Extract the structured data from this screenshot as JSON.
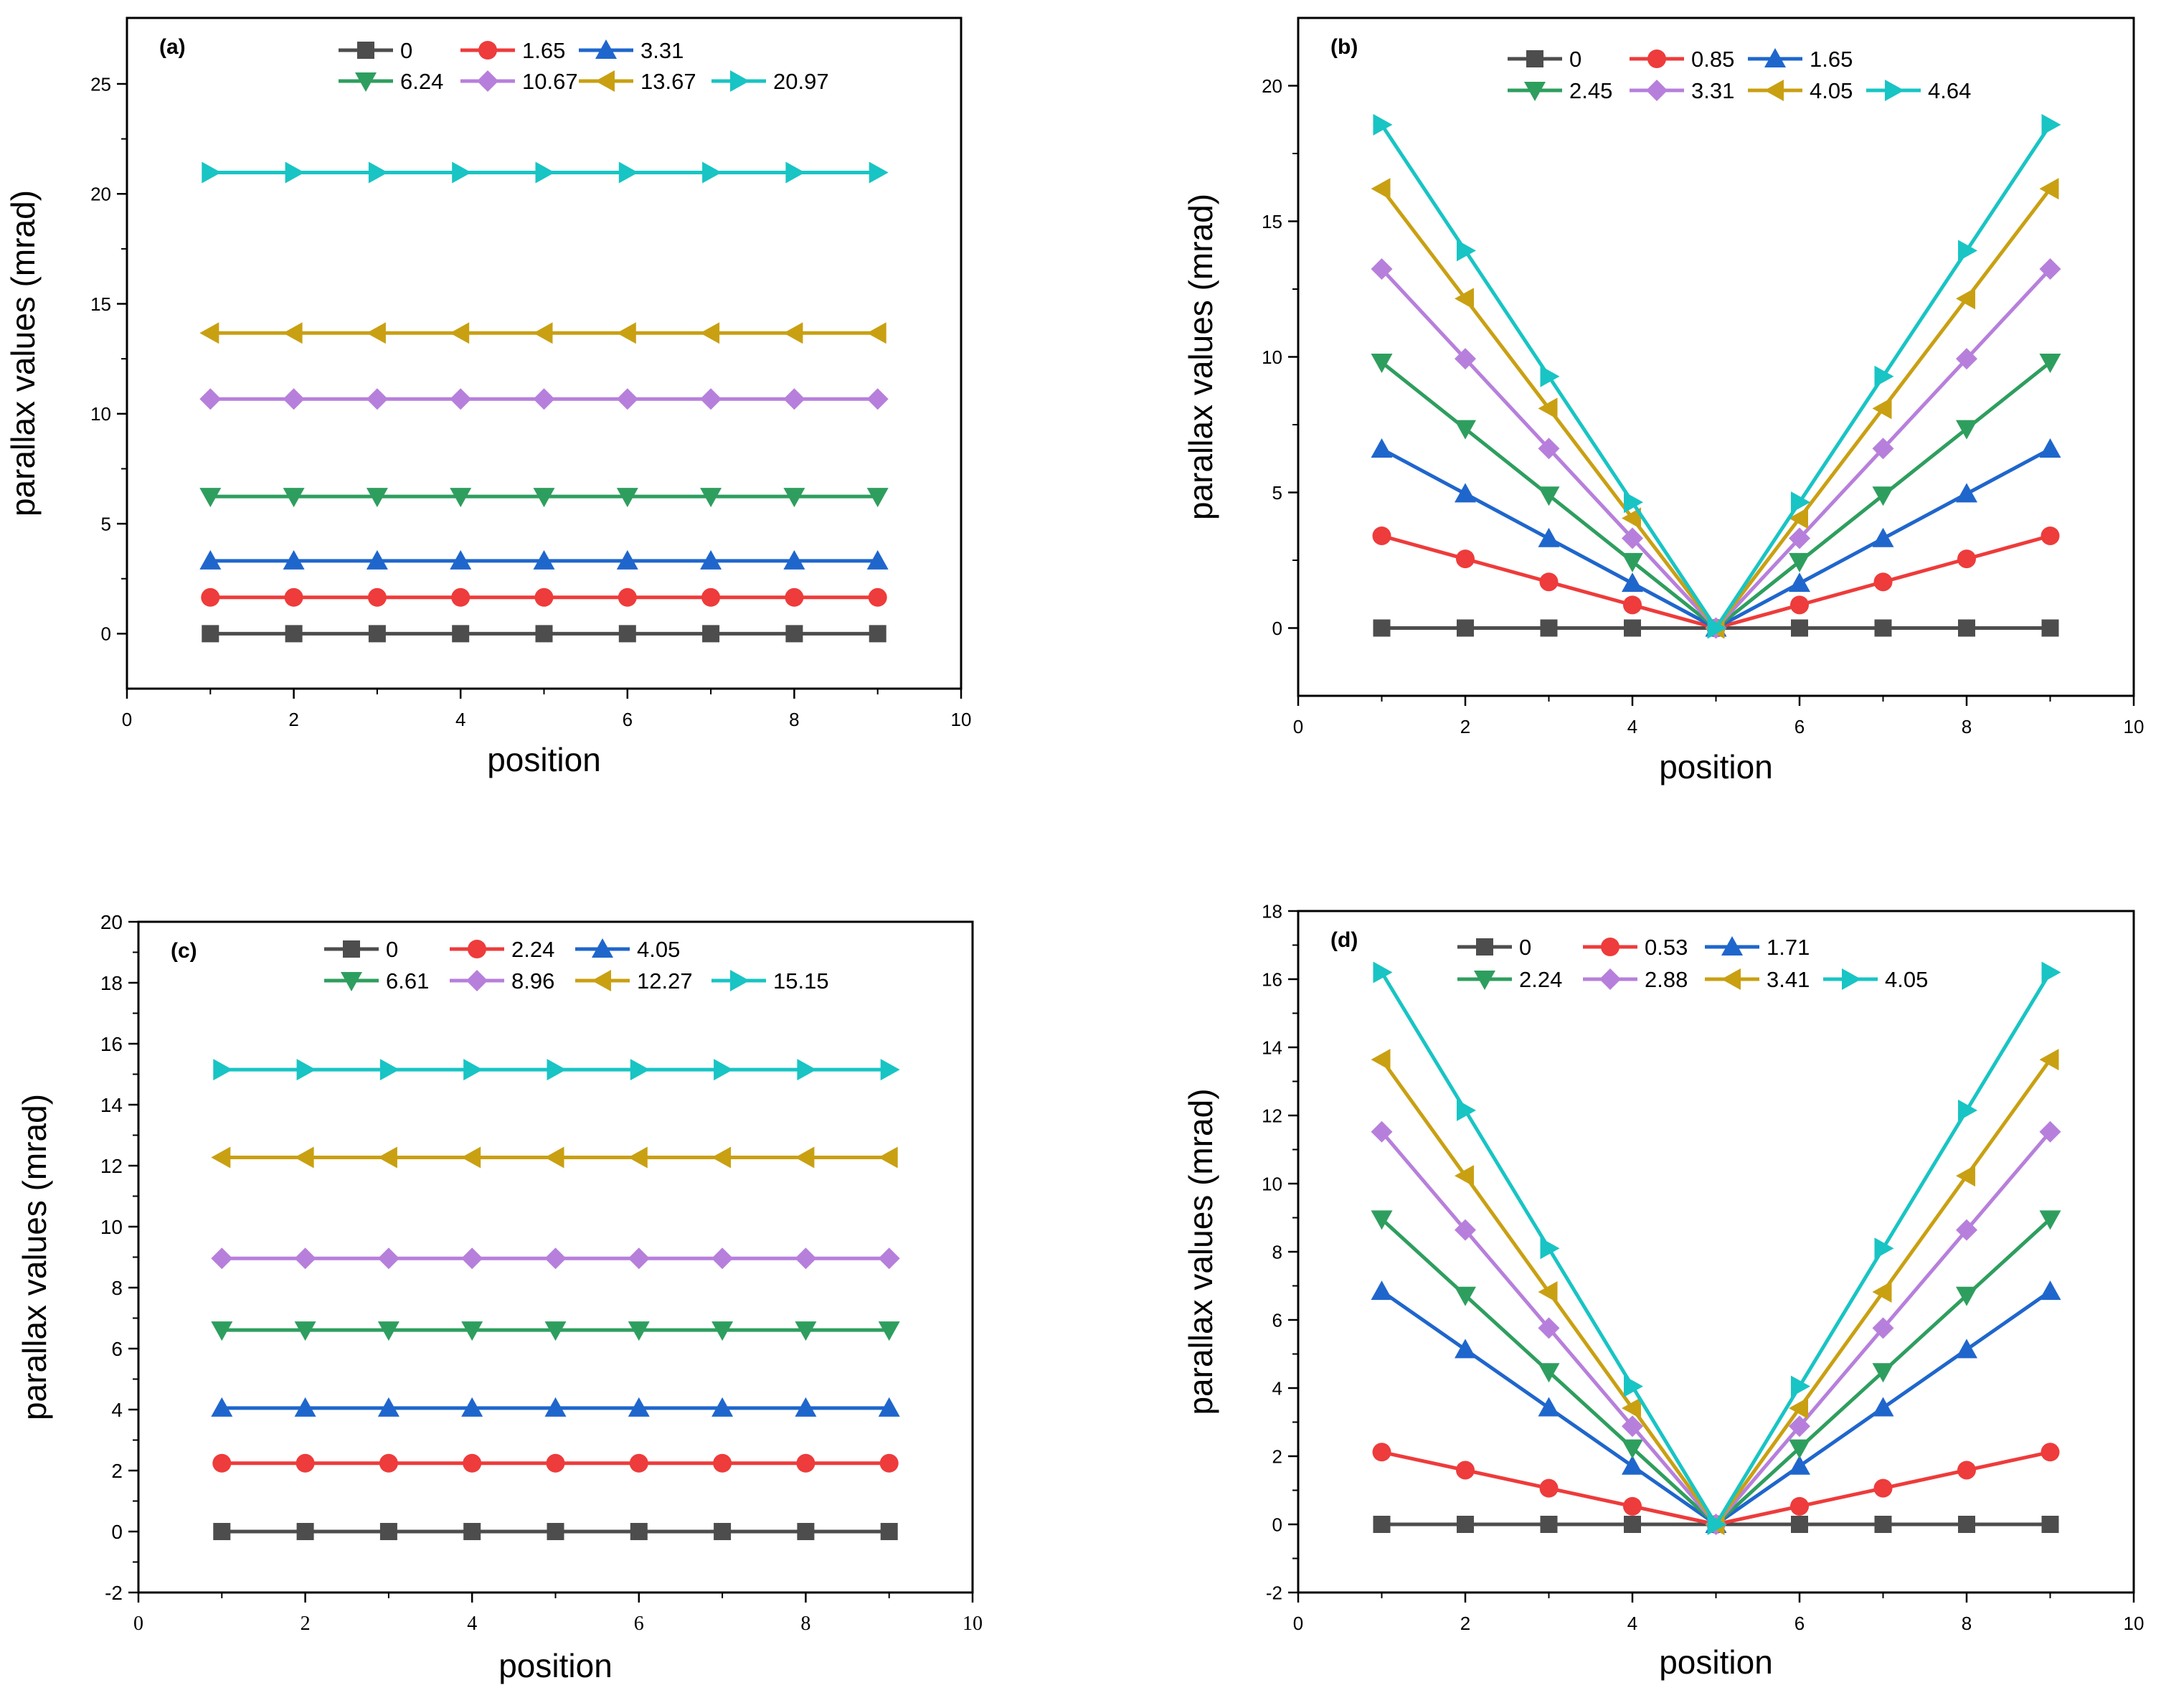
{
  "figure_colors": {
    "0": "#4d4d4d",
    "1": "#ee3b3b",
    "2": "#1f66cc",
    "3": "#2e9e5e",
    "4": "#b77fdc",
    "5": "#c9a012",
    "6": "#19c4c4"
  },
  "chart_data": [
    {
      "type": "line",
      "panel_label": "(a)",
      "xlabel": "position",
      "ylabel": "parallax values (mrad)",
      "xlim": [
        0,
        10
      ],
      "ylim": [
        -2.5,
        28
      ],
      "xticks": [
        0,
        2,
        4,
        6,
        8,
        10
      ],
      "yticks": [
        0,
        5,
        10,
        15,
        20,
        25
      ],
      "x": [
        1,
        2,
        3,
        4,
        5,
        6,
        7,
        8,
        9
      ],
      "series": [
        {
          "name": "0",
          "marker": "square",
          "values": [
            0,
            0,
            0,
            0,
            0,
            0,
            0,
            0,
            0
          ]
        },
        {
          "name": "1.65",
          "marker": "circle",
          "values": [
            1.65,
            1.65,
            1.65,
            1.65,
            1.65,
            1.65,
            1.65,
            1.65,
            1.65
          ]
        },
        {
          "name": "3.31",
          "marker": "triangle-up",
          "values": [
            3.31,
            3.31,
            3.31,
            3.31,
            3.31,
            3.31,
            3.31,
            3.31,
            3.31
          ]
        },
        {
          "name": "6.24",
          "marker": "triangle-down",
          "values": [
            6.24,
            6.24,
            6.24,
            6.24,
            6.24,
            6.24,
            6.24,
            6.24,
            6.24
          ]
        },
        {
          "name": "10.67",
          "marker": "diamond",
          "values": [
            10.67,
            10.67,
            10.67,
            10.67,
            10.67,
            10.67,
            10.67,
            10.67,
            10.67
          ]
        },
        {
          "name": "13.67",
          "marker": "triangle-left",
          "values": [
            13.67,
            13.67,
            13.67,
            13.67,
            13.67,
            13.67,
            13.67,
            13.67,
            13.67
          ]
        },
        {
          "name": "20.97",
          "marker": "triangle-right",
          "values": [
            20.97,
            20.97,
            20.97,
            20.97,
            20.97,
            20.97,
            20.97,
            20.97,
            20.97
          ]
        }
      ]
    },
    {
      "type": "line",
      "panel_label": "(b)",
      "xlabel": "position",
      "ylabel": "parallax values (mrad)",
      "xlim": [
        0,
        10
      ],
      "ylim": [
        -2.5,
        22.5
      ],
      "xticks": [
        0,
        2,
        4,
        6,
        8,
        10
      ],
      "yticks": [
        0,
        5,
        10,
        15,
        20
      ],
      "x": [
        1,
        2,
        3,
        4,
        5,
        6,
        7,
        8,
        9
      ],
      "series": [
        {
          "name": "0",
          "marker": "square",
          "values": [
            0,
            0,
            0,
            0,
            0,
            0,
            0,
            0,
            0
          ]
        },
        {
          "name": "0.85",
          "marker": "circle",
          "values": [
            3.4,
            2.55,
            1.7,
            0.85,
            0,
            0.85,
            1.7,
            2.55,
            3.4
          ]
        },
        {
          "name": "1.65",
          "marker": "triangle-up",
          "values": [
            6.6,
            4.95,
            3.3,
            1.65,
            0,
            1.65,
            3.3,
            4.95,
            6.6
          ]
        },
        {
          "name": "2.45",
          "marker": "triangle-down",
          "values": [
            9.8,
            7.35,
            4.9,
            2.45,
            0,
            2.45,
            4.9,
            7.35,
            9.8
          ]
        },
        {
          "name": "3.31",
          "marker": "diamond",
          "values": [
            13.24,
            9.93,
            6.62,
            3.31,
            0,
            3.31,
            6.62,
            9.93,
            13.24
          ]
        },
        {
          "name": "4.05",
          "marker": "triangle-left",
          "values": [
            16.2,
            12.15,
            8.1,
            4.05,
            0,
            4.05,
            8.1,
            12.15,
            16.2
          ]
        },
        {
          "name": "4.64",
          "marker": "triangle-right",
          "values": [
            18.56,
            13.92,
            9.28,
            4.64,
            0,
            4.64,
            9.28,
            13.92,
            18.56
          ]
        }
      ]
    },
    {
      "type": "line",
      "panel_label": "(c)",
      "xlabel": "position",
      "ylabel": "parallax values (mrad)",
      "xlim": [
        0,
        10
      ],
      "ylim": [
        -2,
        20
      ],
      "xticks": [
        0,
        2,
        4,
        6,
        8,
        10
      ],
      "yticks": [
        -2,
        0,
        2,
        4,
        6,
        8,
        10,
        12,
        14,
        16,
        18,
        20
      ],
      "x": [
        1,
        2,
        3,
        4,
        5,
        6,
        7,
        8,
        9
      ],
      "series": [
        {
          "name": "0",
          "marker": "square",
          "values": [
            0,
            0,
            0,
            0,
            0,
            0,
            0,
            0,
            0
          ]
        },
        {
          "name": "2.24",
          "marker": "circle",
          "values": [
            2.24,
            2.24,
            2.24,
            2.24,
            2.24,
            2.24,
            2.24,
            2.24,
            2.24
          ]
        },
        {
          "name": "4.05",
          "marker": "triangle-up",
          "values": [
            4.05,
            4.05,
            4.05,
            4.05,
            4.05,
            4.05,
            4.05,
            4.05,
            4.05
          ]
        },
        {
          "name": "6.61",
          "marker": "triangle-down",
          "values": [
            6.61,
            6.61,
            6.61,
            6.61,
            6.61,
            6.61,
            6.61,
            6.61,
            6.61
          ]
        },
        {
          "name": "8.96",
          "marker": "diamond",
          "values": [
            8.96,
            8.96,
            8.96,
            8.96,
            8.96,
            8.96,
            8.96,
            8.96,
            8.96
          ]
        },
        {
          "name": "12.27",
          "marker": "triangle-left",
          "values": [
            12.27,
            12.27,
            12.27,
            12.27,
            12.27,
            12.27,
            12.27,
            12.27,
            12.27
          ]
        },
        {
          "name": "15.15",
          "marker": "triangle-right",
          "values": [
            15.15,
            15.15,
            15.15,
            15.15,
            15.15,
            15.15,
            15.15,
            15.15,
            15.15
          ]
        }
      ]
    },
    {
      "type": "line",
      "panel_label": "(d)",
      "xlabel": "position",
      "ylabel": "parallax values (mrad)",
      "xlim": [
        0,
        10
      ],
      "ylim": [
        -2,
        18
      ],
      "xticks": [
        0,
        2,
        4,
        6,
        8,
        10
      ],
      "yticks": [
        -2,
        0,
        2,
        4,
        6,
        8,
        10,
        12,
        14,
        16,
        18
      ],
      "x": [
        1,
        2,
        3,
        4,
        5,
        6,
        7,
        8,
        9
      ],
      "series": [
        {
          "name": "0",
          "marker": "square",
          "values": [
            0,
            0,
            0,
            0,
            0,
            0,
            0,
            0,
            0
          ]
        },
        {
          "name": "0.53",
          "marker": "circle",
          "values": [
            2.12,
            1.59,
            1.06,
            0.53,
            0,
            0.53,
            1.06,
            1.59,
            2.12
          ]
        },
        {
          "name": "1.71",
          "marker": "triangle-up",
          "values": [
            6.84,
            5.13,
            3.42,
            1.71,
            0,
            1.71,
            3.42,
            5.13,
            6.84
          ]
        },
        {
          "name": "2.24",
          "marker": "triangle-down",
          "values": [
            8.96,
            6.72,
            4.48,
            2.24,
            0,
            2.24,
            4.48,
            6.72,
            8.96
          ]
        },
        {
          "name": "2.88",
          "marker": "diamond",
          "values": [
            11.52,
            8.64,
            5.76,
            2.88,
            0,
            2.88,
            5.76,
            8.64,
            11.52
          ]
        },
        {
          "name": "3.41",
          "marker": "triangle-left",
          "values": [
            13.64,
            10.23,
            6.82,
            3.41,
            0,
            3.41,
            6.82,
            10.23,
            13.64
          ]
        },
        {
          "name": "4.05",
          "marker": "triangle-right",
          "values": [
            16.2,
            12.15,
            8.1,
            4.05,
            0,
            4.05,
            8.1,
            12.15,
            16.2
          ]
        }
      ]
    }
  ]
}
